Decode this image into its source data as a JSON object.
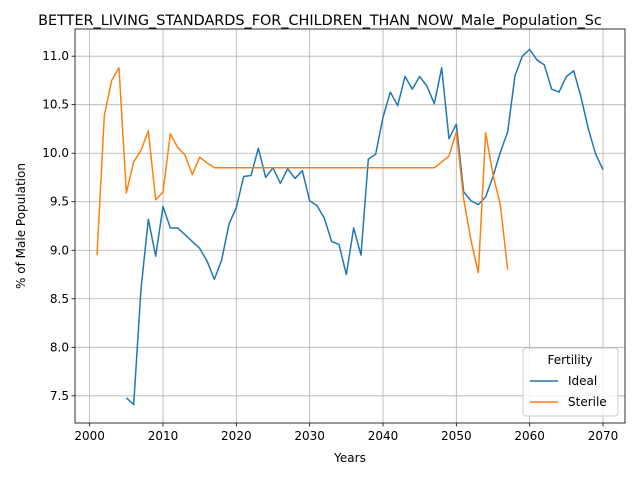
{
  "chart_data": {
    "type": "line",
    "title": "BETTER_LIVING_STANDARDS_FOR_CHILDREN_THAN_NOW_Male_Population_Sc",
    "xlabel": "Years",
    "ylabel": "% of Male Population",
    "xlim": [
      1998,
      2073
    ],
    "ylim": [
      7.22,
      11.28
    ],
    "xticks": [
      2000,
      2010,
      2020,
      2030,
      2040,
      2050,
      2060,
      2070
    ],
    "yticks": [
      7.5,
      8.0,
      8.5,
      9.0,
      9.5,
      10.0,
      10.5,
      11.0
    ],
    "grid": true,
    "legend": {
      "title": "Fertility",
      "placement": "lower right"
    },
    "series": [
      {
        "name": "Ideal",
        "color": "#1f77b4",
        "x": [
          2005,
          2006,
          2007,
          2008,
          2009,
          2010,
          2011,
          2012,
          2013,
          2014,
          2015,
          2016,
          2017,
          2018,
          2019,
          2020,
          2021,
          2022,
          2023,
          2024,
          2025,
          2026,
          2027,
          2028,
          2029,
          2030,
          2031,
          2032,
          2033,
          2034,
          2035,
          2036,
          2037,
          2038,
          2039,
          2040,
          2041,
          2042,
          2043,
          2044,
          2045,
          2046,
          2047,
          2048,
          2049,
          2050,
          2051,
          2052,
          2053,
          2054,
          2055,
          2056,
          2057,
          2058,
          2059,
          2060,
          2061,
          2062,
          2063,
          2064,
          2065,
          2066,
          2067,
          2068,
          2069,
          2070
        ],
        "y": [
          7.48,
          7.41,
          8.6,
          9.32,
          8.94,
          9.45,
          9.23,
          9.23,
          9.16,
          9.09,
          9.02,
          8.89,
          8.7,
          8.9,
          9.27,
          9.44,
          9.76,
          9.77,
          10.05,
          9.75,
          9.85,
          9.69,
          9.84,
          9.74,
          9.82,
          9.51,
          9.46,
          9.33,
          9.09,
          9.06,
          8.75,
          9.23,
          8.95,
          9.94,
          9.99,
          10.37,
          10.63,
          10.49,
          10.79,
          10.66,
          10.79,
          10.69,
          10.51,
          10.88,
          10.15,
          10.3,
          9.6,
          9.51,
          9.47,
          9.55,
          9.76,
          10.01,
          10.22,
          10.8,
          11.0,
          11.07,
          10.96,
          10.91,
          10.66,
          10.63,
          10.79,
          10.85,
          10.58,
          10.25,
          9.99,
          9.83
        ]
      },
      {
        "name": "Sterile",
        "color": "#ff7f0e",
        "x": [
          2001,
          2002,
          2003,
          2004,
          2005,
          2006,
          2007,
          2008,
          2009,
          2010,
          2011,
          2012,
          2013,
          2014,
          2015,
          2016,
          2017,
          2018,
          2019,
          2020,
          2021,
          2022,
          2023,
          2024,
          2025,
          2026,
          2027,
          2028,
          2029,
          2030,
          2031,
          2032,
          2033,
          2034,
          2035,
          2036,
          2037,
          2038,
          2039,
          2040,
          2041,
          2042,
          2043,
          2044,
          2045,
          2046,
          2047,
          2048,
          2049,
          2050,
          2051,
          2052,
          2053,
          2054,
          2055,
          2056,
          2057
        ],
        "y": [
          8.95,
          10.39,
          10.75,
          10.88,
          9.59,
          9.91,
          10.03,
          10.23,
          9.52,
          9.6,
          10.2,
          10.06,
          9.98,
          9.78,
          9.96,
          9.9,
          9.85,
          9.85,
          9.85,
          9.85,
          9.85,
          9.85,
          9.85,
          9.85,
          9.85,
          9.85,
          9.85,
          9.85,
          9.85,
          9.85,
          9.85,
          9.85,
          9.85,
          9.85,
          9.85,
          9.85,
          9.85,
          9.85,
          9.85,
          9.85,
          9.85,
          9.85,
          9.85,
          9.85,
          9.85,
          9.85,
          9.85,
          9.91,
          9.97,
          10.22,
          9.53,
          9.1,
          8.77,
          10.21,
          9.78,
          9.47,
          8.8
        ]
      }
    ]
  }
}
